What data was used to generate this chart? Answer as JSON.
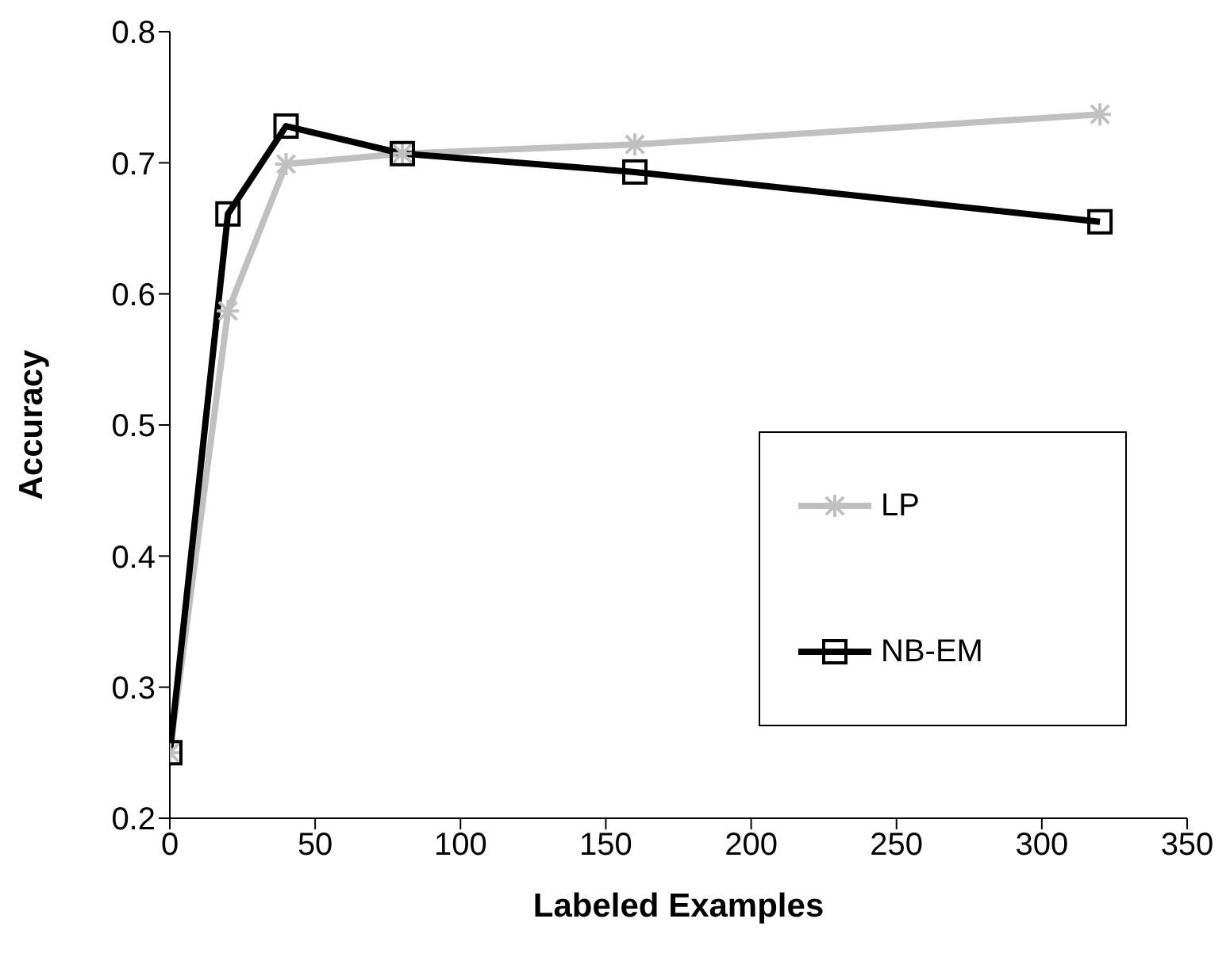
{
  "chart_data": {
    "type": "line",
    "xlabel": "Labeled Examples",
    "ylabel": "Accuracy",
    "x": [
      0,
      20,
      40,
      80,
      160,
      320
    ],
    "series": [
      {
        "name": "LP",
        "color": "#c0c0c0",
        "marker": "cross",
        "values": [
          0.25,
          0.587,
          0.699,
          0.707,
          0.714,
          0.737
        ]
      },
      {
        "name": "NB-EM",
        "color": "#000000",
        "marker": "square",
        "values": [
          0.25,
          0.661,
          0.728,
          0.707,
          0.693,
          0.655
        ]
      }
    ],
    "xlim": [
      0,
      350
    ],
    "xticks": [
      0,
      50,
      100,
      150,
      200,
      250,
      300,
      350
    ],
    "ylim": [
      0.2,
      0.8
    ],
    "yticks": [
      0.2,
      0.3,
      0.4,
      0.5,
      0.6,
      0.7,
      0.8
    ],
    "grid": false,
    "legend": "right",
    "line_style": "solid"
  }
}
